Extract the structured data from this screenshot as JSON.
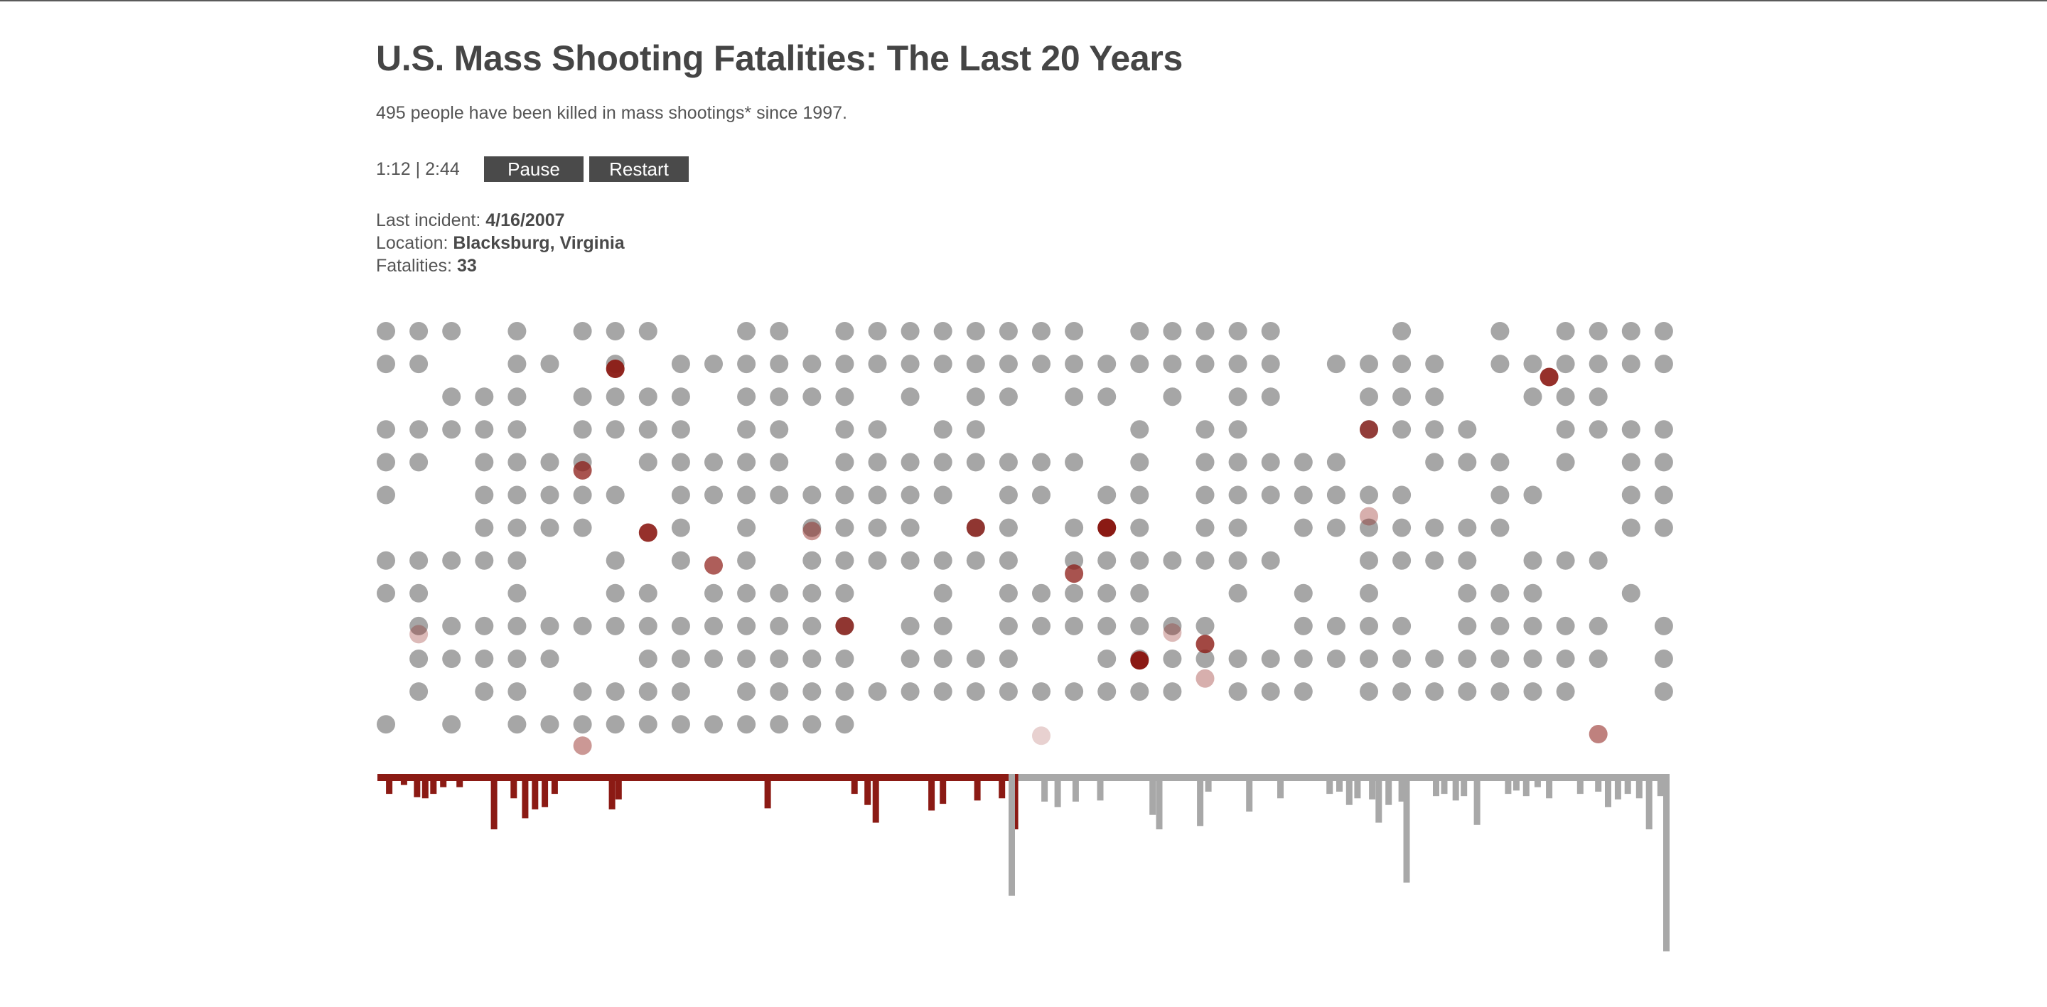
{
  "header": {
    "title": "U.S. Mass Shooting Fatalities: The Last 20 Years",
    "subtitle": "495 people have been killed in mass shootings* since 1997."
  },
  "controls": {
    "elapsed": "1:12",
    "separator": "|",
    "total": "2:44",
    "pause_label": "Pause",
    "restart_label": "Restart"
  },
  "incident": {
    "date_label": "Last incident:",
    "date_value": "4/16/2007",
    "location_label": "Location:",
    "location_value": "Blacksburg, Virginia",
    "fatalities_label": "Fatalities:",
    "fatalities_value": "33"
  },
  "colors": {
    "dot_gray": "#a6a6a6",
    "dot_red": "#8b1a14",
    "bar_red": "#8b1a14",
    "bar_gray": "#a8a8a8",
    "text": "#4a4a4a"
  },
  "chart_data": {
    "type": "scatter",
    "title": "U.S. Mass Shooting Fatalities: The Last 20 Years",
    "grid": {
      "columns": 40,
      "rows": 13
    },
    "gray_dots_by_row": [
      "XXX.X.XXX..XX.XXXXXXXX.XXXXX...X..X.XXXX",
      "XX..XX.X.XXXXXXXXXXXXXXXXXXX.XXXX.XXXXXX",
      "..XXX.XXXX.XXXX.X.XX.XX.X.XX..XXX..XXX..",
      "XXXXX.XXXX.XX.XX.XX....X.XX...XXXX..XXXX",
      "XX.XXXX.XXXXX.XXXXXXXX.X.XXXXX..XXX.X.XX",
      "X..XXXXX.XXXXXXXXX.XX.XX.XXXXXXX..XX..XX",
      "...XXXX..X.X.XXXX.XX.XXX.XX.XXXXXXX...XX",
      "XXXXX..X.X.X.XXXXXXX.XXXXXXX..XXXX.XXX..",
      "XX..X..XX.XXXXX..X.XXXXX..X.X.X..XXX..X.",
      ".XXXXXXXXXXXXXX.XX.XXXXXXX..XXXX.XXXXX.X",
      ".XXXXX..XXXXXXX.XXXX..XXXXXXXXXXXXXXXX.X",
      ".X.XX.XXXX.XXXXXXXXXXXXXX.XXX.XXXXXXX..X",
      "X.X.XXXXXXXXXXX........................."
    ],
    "red_dots": [
      {
        "col": 7.0,
        "row": 1.15,
        "shade": 0.95
      },
      {
        "col": 35.5,
        "row": 1.4,
        "shade": 0.9
      },
      {
        "col": 30.0,
        "row": 3.0,
        "shade": 0.75
      },
      {
        "col": 6.0,
        "row": 4.25,
        "shade": 0.75
      },
      {
        "col": 30.0,
        "row": 5.65,
        "shade": 0.35
      },
      {
        "col": 8.0,
        "row": 6.15,
        "shade": 0.9
      },
      {
        "col": 13.0,
        "row": 6.1,
        "shade": 0.45
      },
      {
        "col": 18.0,
        "row": 6.0,
        "shade": 0.8
      },
      {
        "col": 22.0,
        "row": 6.0,
        "shade": 1.0
      },
      {
        "col": 10.0,
        "row": 7.15,
        "shade": 0.7
      },
      {
        "col": 21.0,
        "row": 7.4,
        "shade": 0.75
      },
      {
        "col": 1.0,
        "row": 9.25,
        "shade": 0.3
      },
      {
        "col": 14.0,
        "row": 9.0,
        "shade": 0.8
      },
      {
        "col": 24.0,
        "row": 9.2,
        "shade": 0.3
      },
      {
        "col": 25.0,
        "row": 9.55,
        "shade": 0.8
      },
      {
        "col": 23.0,
        "row": 10.05,
        "shade": 1.0
      },
      {
        "col": 25.0,
        "row": 10.6,
        "shade": 0.35
      },
      {
        "col": 6.0,
        "row": 12.65,
        "shade": 0.45
      },
      {
        "col": 20.0,
        "row": 12.35,
        "shade": 0.2
      },
      {
        "col": 37.0,
        "row": 12.3,
        "shade": 0.55
      }
    ],
    "bars": {
      "red_until_col": 19.2,
      "values": [
        [
          0.1,
          1.8
        ],
        [
          0.55,
          1.0
        ],
        [
          0.95,
          2.1
        ],
        [
          1.2,
          2.2
        ],
        [
          1.45,
          1.8
        ],
        [
          1.75,
          1.2
        ],
        [
          2.25,
          1.2
        ],
        [
          3.3,
          5.0
        ],
        [
          3.9,
          2.2
        ],
        [
          4.25,
          4.0
        ],
        [
          4.55,
          3.2
        ],
        [
          4.85,
          3.0
        ],
        [
          5.15,
          1.8
        ],
        [
          6.9,
          3.2
        ],
        [
          7.1,
          2.3
        ],
        [
          11.65,
          3.1
        ],
        [
          14.3,
          1.8
        ],
        [
          14.7,
          2.8
        ],
        [
          14.95,
          4.4
        ],
        [
          16.65,
          3.3
        ],
        [
          17.0,
          2.7
        ],
        [
          18.05,
          2.4
        ],
        [
          18.8,
          2.2
        ],
        [
          19.2,
          5.0
        ],
        [
          19.1,
          11.0
        ],
        [
          20.1,
          2.5
        ],
        [
          20.5,
          3.0
        ],
        [
          21.05,
          2.5
        ],
        [
          21.8,
          2.4
        ],
        [
          23.4,
          3.7
        ],
        [
          23.6,
          5.0
        ],
        [
          24.85,
          4.7
        ],
        [
          25.1,
          1.6
        ],
        [
          26.35,
          3.4
        ],
        [
          27.3,
          2.2
        ],
        [
          28.8,
          1.8
        ],
        [
          29.1,
          1.6
        ],
        [
          29.4,
          2.8
        ],
        [
          29.65,
          2.2
        ],
        [
          30.1,
          2.3
        ],
        [
          30.3,
          4.4
        ],
        [
          30.6,
          2.8
        ],
        [
          31.0,
          2.5
        ],
        [
          31.15,
          9.8
        ],
        [
          32.05,
          2.0
        ],
        [
          32.3,
          1.8
        ],
        [
          32.65,
          2.4
        ],
        [
          32.9,
          2.0
        ],
        [
          33.3,
          4.6
        ],
        [
          34.25,
          1.8
        ],
        [
          34.5,
          1.5
        ],
        [
          34.8,
          2.0
        ],
        [
          35.15,
          1.2
        ],
        [
          35.5,
          2.2
        ],
        [
          36.45,
          1.8
        ],
        [
          37.0,
          1.6
        ],
        [
          37.3,
          3.0
        ],
        [
          37.6,
          2.3
        ],
        [
          37.9,
          1.8
        ],
        [
          38.25,
          2.2
        ],
        [
          38.55,
          5.0
        ],
        [
          38.9,
          2.0
        ],
        [
          39.3,
          1.2
        ],
        [
          40.0,
          16.0
        ]
      ]
    }
  }
}
